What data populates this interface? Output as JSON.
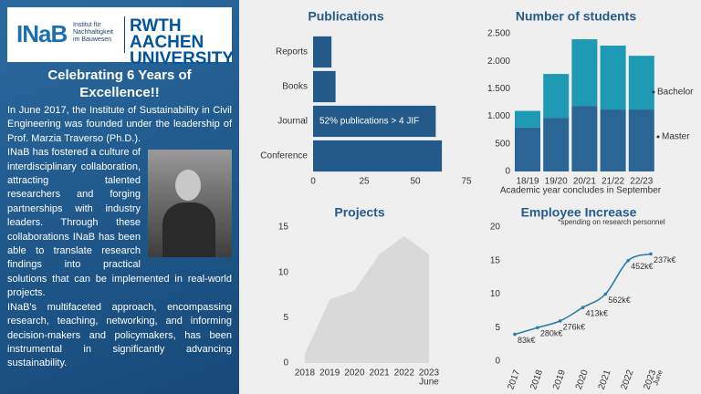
{
  "sidebar": {
    "logo_short": "INaB",
    "logo_institute": "Institut für Nachhaltigkeit im Bauwesen",
    "logo_university": "RWTH AACHEN UNIVERSITY",
    "heading": "Celebrating 6 Years of Excellence!!",
    "paragraphs": [
      "In June 2017, the Institute of Sustainability in Civil Engineering was founded under the leadership of Prof. Marzia Traverso (Ph.D.).",
      "INaB has fostered a culture of interdisciplinary collaboration, attracting talented researchers and forging partnerships with industry leaders. Through these collaborations INaB has been able to translate research findings into practical solutions that can be implemented in real-world projects.",
      "INaB's multifaceted approach, encompassing research, teaching, networking, and informing decision-makers and policymakers, has been instrumental in significantly advancing sustainability."
    ]
  },
  "chart_data": [
    {
      "type": "hbar",
      "title": "Publications",
      "categories": [
        "Reports",
        "Books",
        "Journal",
        "Conference"
      ],
      "values": [
        9,
        11,
        60,
        63
      ],
      "color": "#235a8a",
      "xlim": [
        0,
        75
      ],
      "xticks": [
        0,
        25,
        50,
        75
      ],
      "annotation": "52% publications > 4 JIF"
    },
    {
      "type": "stacked_bar",
      "title": "Number of students",
      "xlabel": "Academic year concludes in September",
      "categories": [
        "18/19",
        "19/20",
        "20/21",
        "21/22",
        "22/23"
      ],
      "series": [
        {
          "name": "Master",
          "color": "#2a6596",
          "values": [
            800,
            975,
            1190,
            1125,
            1125
          ]
        },
        {
          "name": "Bachelor",
          "color": "#1e9ab5",
          "values": [
            300,
            795,
            1210,
            1160,
            975
          ]
        }
      ],
      "ylim": [
        0,
        2500
      ],
      "yticks": [
        {
          "value": 2500,
          "label": "2.500"
        },
        {
          "value": 2000,
          "label": "2.000"
        },
        {
          "value": 1500,
          "label": "1.500"
        },
        {
          "value": 1000,
          "label": "1.000"
        },
        500,
        0
      ]
    },
    {
      "type": "area",
      "title": "Projects",
      "categories": [
        "2018",
        "2019",
        "2020",
        "2021",
        "2022",
        "2023"
      ],
      "category_note": "June",
      "values": [
        1,
        7,
        8,
        12,
        14,
        12
      ],
      "color": "#d9d9d9",
      "ylim": [
        0,
        15
      ],
      "yticks": [
        0,
        5,
        10,
        15
      ]
    },
    {
      "type": "line",
      "title": "Employee Increase",
      "subtitle": "*spending on research personnel",
      "categories": [
        "2017",
        "2018",
        "2019",
        "2020",
        "2021",
        "2022",
        "2023"
      ],
      "category_note": "June",
      "values": [
        4,
        5,
        6,
        8,
        10,
        15,
        16
      ],
      "annotations": [
        "83k€",
        "280k€",
        "276k€",
        "413k€",
        "562k€",
        "452k€",
        "237k€"
      ],
      "color": "#2c7ea8",
      "ylim": [
        0,
        20
      ],
      "yticks": [
        0,
        5,
        10,
        15,
        20
      ]
    }
  ]
}
